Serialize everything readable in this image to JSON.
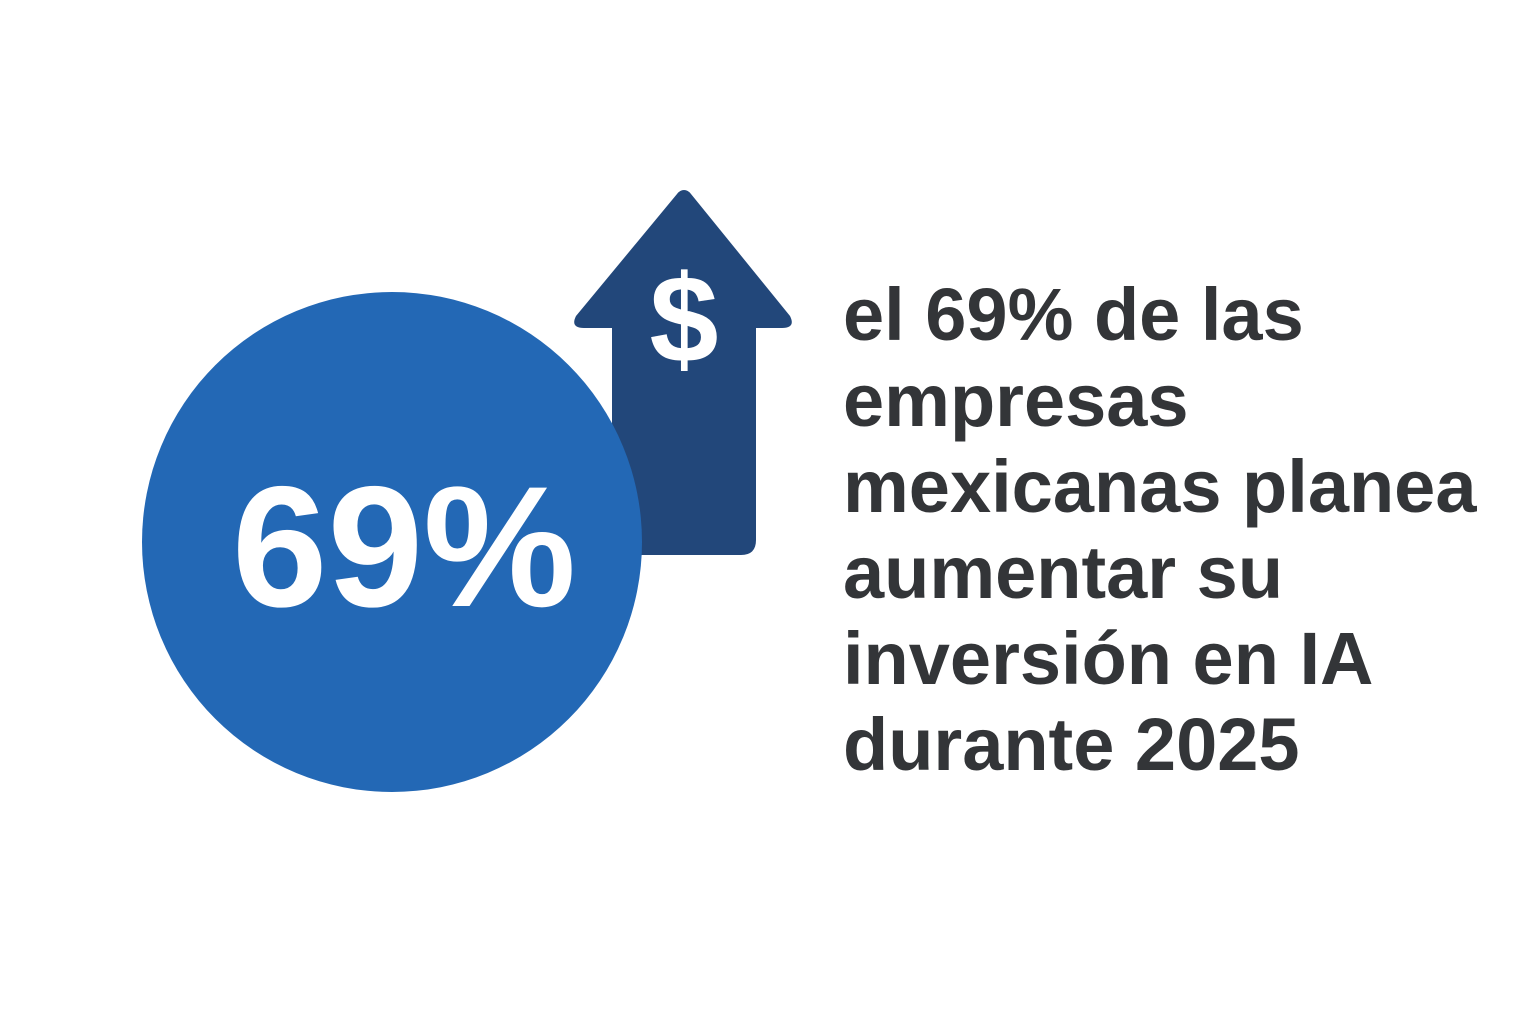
{
  "stat": {
    "value_label": "69%",
    "currency_symbol": "$"
  },
  "statement": {
    "lines": [
      "el 69% de las",
      "empresas",
      "mexicanas planea",
      "aumentar su",
      "inversión en IA",
      "durante 2025"
    ]
  },
  "icons": {
    "arrow": "up-arrow-icon",
    "currency": "dollar-sign-icon"
  },
  "colors": {
    "circle": "#2368B5",
    "arrow": "#22477A",
    "stat_text": "#FFFFFF",
    "statement_text": "#333538",
    "background": "#FFFFFF"
  }
}
